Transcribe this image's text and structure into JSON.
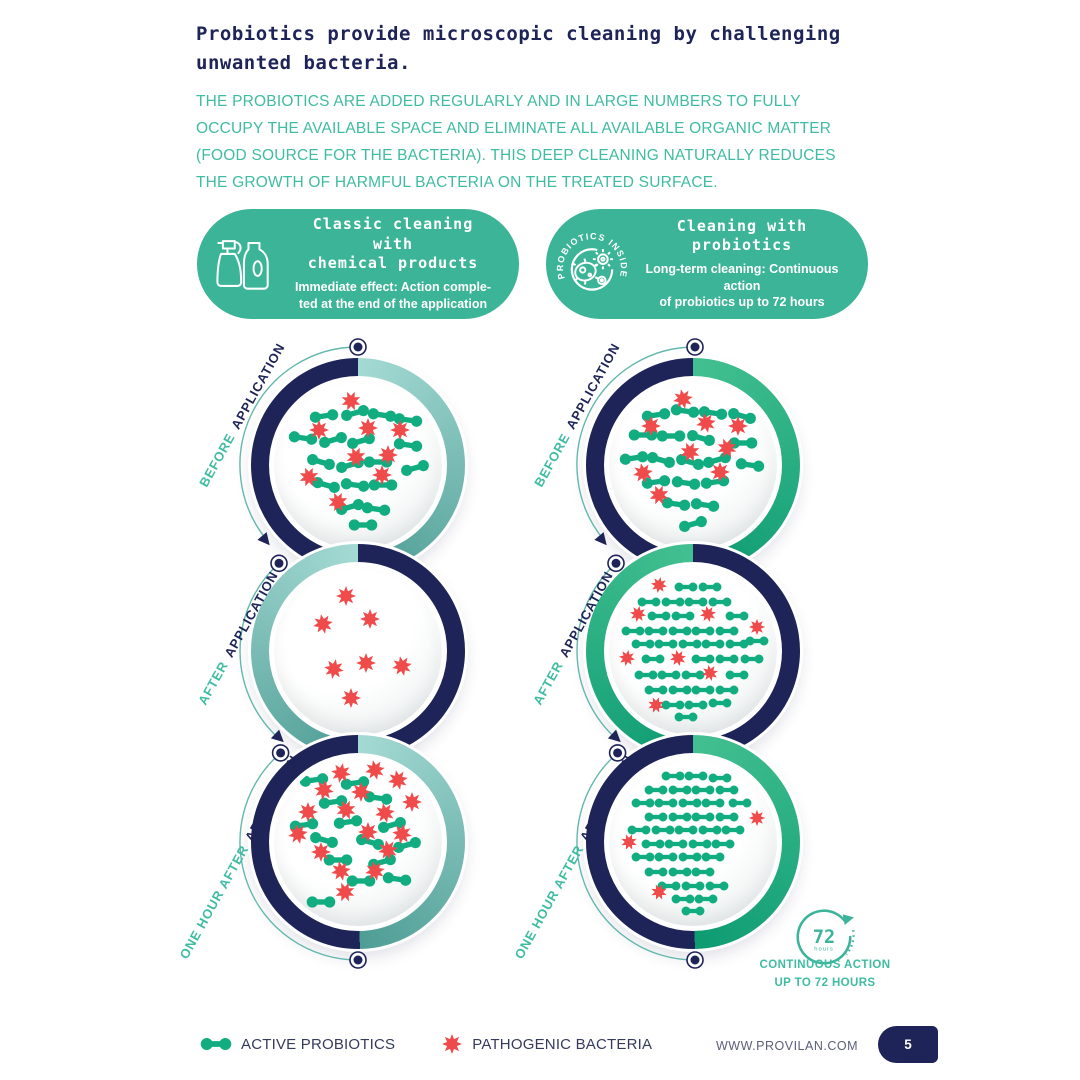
{
  "colors": {
    "navy": "#1E2358",
    "teal": "#3FBCA2",
    "green": "#12AC81",
    "red": "#F04B4B",
    "pill": "#3CB497",
    "arc": "#63B8AD",
    "ringTealLight": "#A5DAD4",
    "ringTealDark": "#4E9D95",
    "ringGreenLight": "#43C091",
    "ringGreenDark": "#0E9B72"
  },
  "header": {
    "title": "Probiotics provide microscopic cleaning by challenging unwanted bacteria.",
    "intro": "THE PROBIOTICS ARE ADDED REGULARLY AND IN LARGE NUMBERS TO FULLY OCCUPY THE AVAILABLE SPACE AND ELIMINATE ALL AVAILABLE ORGANIC MATTER (FOOD SOURCE FOR THE BACTERIA). THIS DEEP CLEANING NATURALLY REDUCES THE GROWTH OF HARMFUL BACTERIA ON THE TREATED SURFACE."
  },
  "cards": [
    {
      "title": "Classic cleaning with\nchemical products",
      "subtitle": "Immediate effect: Action comple-\nted at the end of the application",
      "icon": "spray-bottles-icon"
    },
    {
      "title": "Cleaning with\nprobiotics",
      "subtitle": "Long-term cleaning: Continuous action\nof probiotics up to 72 hours",
      "icon": "probiotics-inside-badge-icon",
      "badge_text": "PROBIOTICS INSIDE"
    }
  ],
  "columns": [
    {
      "id": "classic-cleaning",
      "stages": [
        {
          "label_accent": "BEFORE",
          "label_rest": "APPLICATION",
          "dense": false,
          "probiotics": [
            [
              30,
              21
            ],
            [
              48,
              19
            ],
            [
              64,
              20
            ],
            [
              80,
              23
            ],
            [
              17,
              34
            ],
            [
              35,
              35
            ],
            [
              52,
              36
            ],
            [
              80,
              38
            ],
            [
              28,
              48
            ],
            [
              45,
              50
            ],
            [
              62,
              48
            ],
            [
              84,
              52
            ],
            [
              31,
              62
            ],
            [
              48,
              62
            ],
            [
              65,
              62
            ],
            [
              45,
              75
            ],
            [
              61,
              76
            ],
            [
              53,
              86
            ]
          ],
          "pathogens": [
            [
              46,
              12
            ],
            [
              27,
              29
            ],
            [
              56,
              28
            ],
            [
              75,
              29
            ],
            [
              49,
              45
            ],
            [
              68,
              44
            ],
            [
              21,
              57
            ],
            [
              64,
              56
            ],
            [
              38,
              72
            ]
          ]
        },
        {
          "label_accent": "AFTER",
          "label_rest": "APPLICATION",
          "dense": false,
          "probiotics": [],
          "pathogens": [
            [
              43,
              17
            ],
            [
              29,
              34
            ],
            [
              57,
              31
            ],
            [
              36,
              61
            ],
            [
              55,
              57
            ],
            [
              76,
              59
            ],
            [
              46,
              78
            ]
          ]
        },
        {
          "label_accent": "ONE HOUR AFTER",
          "label_rest": "APPLICATION",
          "dense": false,
          "probiotics": [
            [
              24,
              13
            ],
            [
              48,
              15
            ],
            [
              35,
              26
            ],
            [
              62,
              24
            ],
            [
              18,
              40
            ],
            [
              44,
              38
            ],
            [
              70,
              40
            ],
            [
              30,
              49
            ],
            [
              57,
              50
            ],
            [
              79,
              52
            ],
            [
              38,
              61
            ],
            [
              64,
              62
            ],
            [
              52,
              73
            ],
            [
              73,
              72
            ],
            [
              28,
              86
            ]
          ],
          "pathogens": [
            [
              40,
              9
            ],
            [
              60,
              7
            ],
            [
              74,
              13
            ],
            [
              30,
              19
            ],
            [
              52,
              20
            ],
            [
              82,
              26
            ],
            [
              20,
              32
            ],
            [
              43,
              31
            ],
            [
              66,
              33
            ],
            [
              14,
              45
            ],
            [
              56,
              44
            ],
            [
              76,
              45
            ],
            [
              28,
              56
            ],
            [
              68,
              55
            ],
            [
              40,
              67
            ],
            [
              60,
              67
            ],
            [
              42,
              80
            ]
          ]
        }
      ]
    },
    {
      "id": "probiotic-cleaning",
      "stages": [
        {
          "label_accent": "BEFORE",
          "label_rest": "APPLICATION",
          "dense": false,
          "probiotics": [
            [
              28,
              20
            ],
            [
              45,
              18
            ],
            [
              62,
              19
            ],
            [
              79,
              21
            ],
            [
              20,
              32
            ],
            [
              37,
              33
            ],
            [
              55,
              34
            ],
            [
              80,
              37
            ],
            [
              15,
              46
            ],
            [
              31,
              47
            ],
            [
              48,
              48
            ],
            [
              64,
              47
            ],
            [
              84,
              50
            ],
            [
              28,
              60
            ],
            [
              46,
              61
            ],
            [
              63,
              60
            ],
            [
              40,
              73
            ],
            [
              57,
              74
            ],
            [
              50,
              85
            ]
          ],
          "pathogens": [
            [
              44,
              11
            ],
            [
              25,
              27
            ],
            [
              58,
              25
            ],
            [
              77,
              27
            ],
            [
              48,
              42
            ],
            [
              70,
              40
            ],
            [
              20,
              55
            ],
            [
              66,
              54
            ],
            [
              30,
              68
            ]
          ]
        },
        {
          "label_accent": "AFTER",
          "label_rest": "APPLICATION",
          "dense": true,
          "probiotics": [
            [
              46,
              12
            ],
            [
              60,
              12
            ],
            [
              24,
              21
            ],
            [
              38,
              21
            ],
            [
              52,
              21
            ],
            [
              66,
              21
            ],
            [
              30,
              29
            ],
            [
              44,
              29
            ],
            [
              76,
              29
            ],
            [
              14,
              38
            ],
            [
              28,
              38
            ],
            [
              42,
              38
            ],
            [
              56,
              38
            ],
            [
              70,
              38
            ],
            [
              20,
              46
            ],
            [
              34,
              46
            ],
            [
              48,
              46
            ],
            [
              62,
              46
            ],
            [
              76,
              46
            ],
            [
              88,
              44
            ],
            [
              26,
              55
            ],
            [
              56,
              55
            ],
            [
              70,
              55
            ],
            [
              85,
              55
            ],
            [
              22,
              64
            ],
            [
              36,
              64
            ],
            [
              50,
              64
            ],
            [
              76,
              64
            ],
            [
              28,
              73
            ],
            [
              42,
              73
            ],
            [
              56,
              73
            ],
            [
              70,
              73
            ],
            [
              38,
              82
            ],
            [
              52,
              82
            ],
            [
              66,
              81
            ],
            [
              46,
              89
            ]
          ],
          "pathogens": [
            [
              30,
              11
            ],
            [
              17,
              28
            ],
            [
              59,
              28
            ],
            [
              88,
              36
            ],
            [
              11,
              54
            ],
            [
              41,
              54
            ],
            [
              60,
              63
            ],
            [
              28,
              82
            ]
          ]
        },
        {
          "label_accent": "ONE HOUR AFTER",
          "label_rest": "APPLICATION",
          "dense": true,
          "probiotics": [
            [
              38,
              11
            ],
            [
              52,
              11
            ],
            [
              66,
              12
            ],
            [
              28,
              19
            ],
            [
              42,
              19
            ],
            [
              56,
              19
            ],
            [
              70,
              19
            ],
            [
              20,
              27
            ],
            [
              34,
              27
            ],
            [
              48,
              27
            ],
            [
              62,
              27
            ],
            [
              78,
              27
            ],
            [
              28,
              35
            ],
            [
              42,
              35
            ],
            [
              56,
              35
            ],
            [
              70,
              35
            ],
            [
              18,
              43
            ],
            [
              32,
              43
            ],
            [
              46,
              43
            ],
            [
              60,
              43
            ],
            [
              74,
              43
            ],
            [
              26,
              51
            ],
            [
              40,
              51
            ],
            [
              54,
              51
            ],
            [
              68,
              51
            ],
            [
              20,
              59
            ],
            [
              34,
              59
            ],
            [
              48,
              59
            ],
            [
              62,
              59
            ],
            [
              28,
              68
            ],
            [
              42,
              68
            ],
            [
              56,
              68
            ],
            [
              36,
              76
            ],
            [
              50,
              76
            ],
            [
              64,
              76
            ],
            [
              44,
              84
            ],
            [
              58,
              84
            ],
            [
              50,
              91
            ]
          ],
          "pathogens": [
            [
              88,
              36
            ],
            [
              12,
              50
            ],
            [
              30,
              80
            ]
          ]
        }
      ]
    }
  ],
  "badge72": {
    "number": "72",
    "unit": "hours",
    "caption": "CONTINUOUS ACTION\nUP TO 72 HOURS"
  },
  "legend": [
    {
      "label": "ACTIVE PROBIOTICS",
      "icon": "probiotic-dumbbell-icon"
    },
    {
      "label": "PATHOGENIC BACTERIA",
      "icon": "pathogen-star-icon"
    }
  ],
  "footer": {
    "website": "WWW.PROVILAN.COM",
    "page_number": "5"
  }
}
